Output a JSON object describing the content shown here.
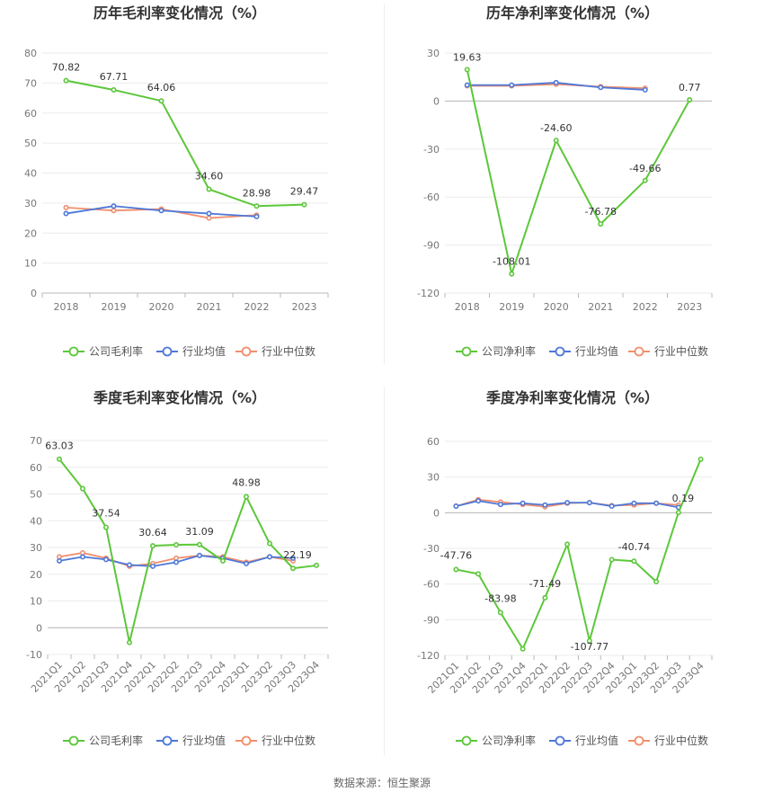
{
  "colors": {
    "company": "#5cc73a",
    "avg": "#4e78d8",
    "median": "#f08f6e"
  },
  "source": "数据来源：恒生聚源",
  "chart_data": [
    {
      "type": "line",
      "title": "历年毛利率变化情况（%）",
      "categories": [
        "2018",
        "2019",
        "2020",
        "2021",
        "2022",
        "2023"
      ],
      "ylim": [
        0,
        80
      ],
      "yticks": [
        0,
        10,
        20,
        30,
        40,
        50,
        60,
        70,
        80
      ],
      "rotate_x": false,
      "legend": [
        "公司毛利率",
        "行业均值",
        "行业中位数"
      ],
      "series": [
        {
          "name": "公司毛利率",
          "key": "company",
          "values": [
            70.82,
            67.71,
            64.06,
            34.6,
            28.98,
            29.47
          ]
        },
        {
          "name": "行业均值",
          "key": "avg",
          "values": [
            26.5,
            29.0,
            27.5,
            26.5,
            25.5,
            null
          ]
        },
        {
          "name": "行业中位数",
          "key": "median",
          "values": [
            28.5,
            27.5,
            28.0,
            25.0,
            26.0,
            null
          ]
        }
      ],
      "labels": [
        {
          "i": 0,
          "text": "70.82"
        },
        {
          "i": 1,
          "text": "67.71"
        },
        {
          "i": 2,
          "text": "64.06"
        },
        {
          "i": 3,
          "text": "34.60"
        },
        {
          "i": 4,
          "text": "28.98"
        },
        {
          "i": 5,
          "text": "29.47"
        }
      ]
    },
    {
      "type": "line",
      "title": "历年净利率变化情况（%）",
      "categories": [
        "2018",
        "2019",
        "2020",
        "2021",
        "2022",
        "2023"
      ],
      "ylim": [
        -120,
        30
      ],
      "yticks": [
        -120,
        -90,
        -60,
        -30,
        0,
        30
      ],
      "rotate_x": false,
      "legend": [
        "公司净利率",
        "行业均值",
        "行业中位数"
      ],
      "series": [
        {
          "name": "公司净利率",
          "key": "company",
          "values": [
            19.63,
            -108.01,
            -24.6,
            -76.78,
            -49.66,
            0.77
          ]
        },
        {
          "name": "行业均值",
          "key": "avg",
          "values": [
            10.0,
            10.0,
            11.5,
            8.5,
            7.0,
            null
          ]
        },
        {
          "name": "行业中位数",
          "key": "median",
          "values": [
            9.5,
            9.5,
            10.5,
            9.0,
            8.0,
            null
          ]
        }
      ],
      "labels": [
        {
          "i": 0,
          "text": "19.63"
        },
        {
          "i": 1,
          "text": "-108.01"
        },
        {
          "i": 2,
          "text": "-24.60"
        },
        {
          "i": 3,
          "text": "-76.78"
        },
        {
          "i": 4,
          "text": "-49.66"
        },
        {
          "i": 5,
          "text": "0.77"
        }
      ]
    },
    {
      "type": "line",
      "title": "季度毛利率变化情况（%）",
      "categories": [
        "2021Q1",
        "2021Q2",
        "2021Q3",
        "2021Q4",
        "2022Q1",
        "2022Q2",
        "2022Q3",
        "2022Q4",
        "2023Q1",
        "2023Q2",
        "2023Q3",
        "2023Q4"
      ],
      "ylim": [
        -10,
        70
      ],
      "yticks": [
        -10,
        0,
        10,
        20,
        30,
        40,
        50,
        60,
        70
      ],
      "rotate_x": true,
      "legend": [
        "公司毛利率",
        "行业均值",
        "行业中位数"
      ],
      "series": [
        {
          "name": "公司毛利率",
          "key": "company",
          "values": [
            63.03,
            52.0,
            37.54,
            -5.5,
            30.64,
            31.0,
            31.09,
            25.0,
            48.98,
            31.5,
            22.19,
            23.3
          ]
        },
        {
          "name": "行业均值",
          "key": "avg",
          "values": [
            25.0,
            26.5,
            25.5,
            23.5,
            23.0,
            24.5,
            27.0,
            26.0,
            24.0,
            26.5,
            26.0,
            null
          ]
        },
        {
          "name": "行业中位数",
          "key": "median",
          "values": [
            26.5,
            28.0,
            26.0,
            23.0,
            24.0,
            26.0,
            27.0,
            26.5,
            24.5,
            26.5,
            25.0,
            null
          ]
        }
      ],
      "labels": [
        {
          "i": 0,
          "text": "63.03"
        },
        {
          "i": 2,
          "text": "37.54"
        },
        {
          "i": 4,
          "text": "30.64"
        },
        {
          "i": 6,
          "text": "31.09"
        },
        {
          "i": 8,
          "text": "48.98"
        },
        {
          "i": 10,
          "text": "22.19"
        }
      ]
    },
    {
      "type": "line",
      "title": "季度净利率变化情况（%）",
      "categories": [
        "2021Q1",
        "2021Q2",
        "2021Q3",
        "2021Q4",
        "2022Q1",
        "2022Q2",
        "2022Q3",
        "2022Q4",
        "2023Q1",
        "2023Q2",
        "2023Q3",
        "2023Q4"
      ],
      "ylim": [
        -120,
        60
      ],
      "yticks": [
        -120,
        -90,
        -60,
        -30,
        0,
        30,
        60
      ],
      "rotate_x": true,
      "legend": [
        "公司净利率",
        "行业均值",
        "行业中位数"
      ],
      "series": [
        {
          "name": "公司净利率",
          "key": "company",
          "values": [
            -47.76,
            -51.5,
            -83.98,
            -114.5,
            -71.49,
            -26.5,
            -107.77,
            -39.5,
            -40.74,
            -58.0,
            0.19,
            45.0
          ]
        },
        {
          "name": "行业均值",
          "key": "avg",
          "values": [
            5.5,
            10.0,
            7.0,
            8.0,
            6.5,
            8.5,
            8.5,
            5.5,
            8.0,
            8.0,
            4.5,
            null
          ]
        },
        {
          "name": "行业中位数",
          "key": "median",
          "values": [
            5.5,
            11.0,
            9.0,
            7.0,
            5.0,
            8.0,
            8.5,
            6.0,
            6.5,
            8.0,
            6.5,
            null
          ]
        }
      ],
      "labels": [
        {
          "i": 0,
          "text": "-47.76"
        },
        {
          "i": 2,
          "text": "-83.98"
        },
        {
          "i": 4,
          "text": "-71.49"
        },
        {
          "i": 6,
          "text": "-107.77"
        },
        {
          "i": 8,
          "text": "-40.74"
        },
        {
          "i": 10,
          "text": "0.19"
        }
      ]
    }
  ]
}
